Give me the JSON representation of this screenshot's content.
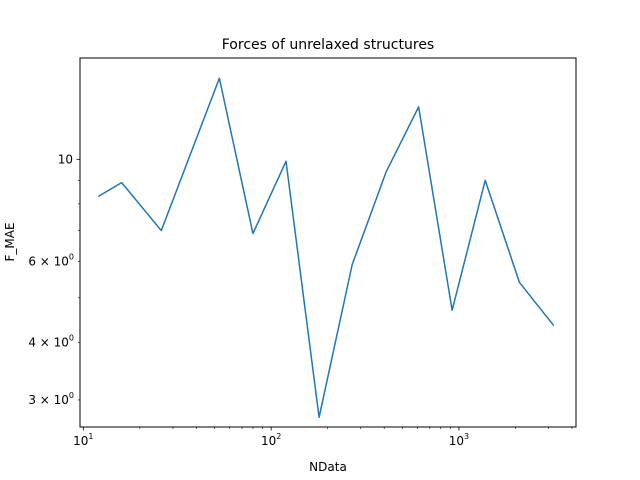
{
  "chart_data": {
    "type": "line",
    "title": "Forces of unrelaxed structures",
    "xlabel": "NData",
    "ylabel": "F_MAE",
    "xscale": "log",
    "yscale": "log",
    "xlim": [
      9.6,
      4200
    ],
    "ylim": [
      2.62,
      16.6
    ],
    "grid": false,
    "legend": "none",
    "colors": {
      "line": "#1f77b4",
      "axes": "#000000",
      "background": "#ffffff"
    },
    "x_ticks_major": [
      {
        "value": 10,
        "base": "10",
        "exp": "1"
      },
      {
        "value": 100,
        "base": "10",
        "exp": "2"
      },
      {
        "value": 1000,
        "base": "10",
        "exp": "3"
      }
    ],
    "y_ticks_major": [
      {
        "value": 10,
        "text": "10"
      }
    ],
    "y_ticks_minor_labeled": [
      {
        "value": 3,
        "mant": "3 × 10",
        "exp": "0"
      },
      {
        "value": 4,
        "mant": "4 × 10",
        "exp": "0"
      },
      {
        "value": 6,
        "mant": "6 × 10",
        "exp": "0"
      }
    ],
    "y_ticks_minor_unlabeled": [
      5,
      7,
      8,
      9
    ],
    "series": [
      {
        "x": [
          12,
          16,
          26,
          53,
          80,
          120,
          180,
          270,
          410,
          610,
          920,
          1380,
          2100,
          3200
        ],
        "y": [
          8.3,
          8.9,
          7.0,
          15.0,
          6.9,
          9.9,
          2.75,
          5.9,
          9.4,
          13.0,
          4.7,
          9.0,
          5.4,
          4.35
        ]
      }
    ]
  }
}
